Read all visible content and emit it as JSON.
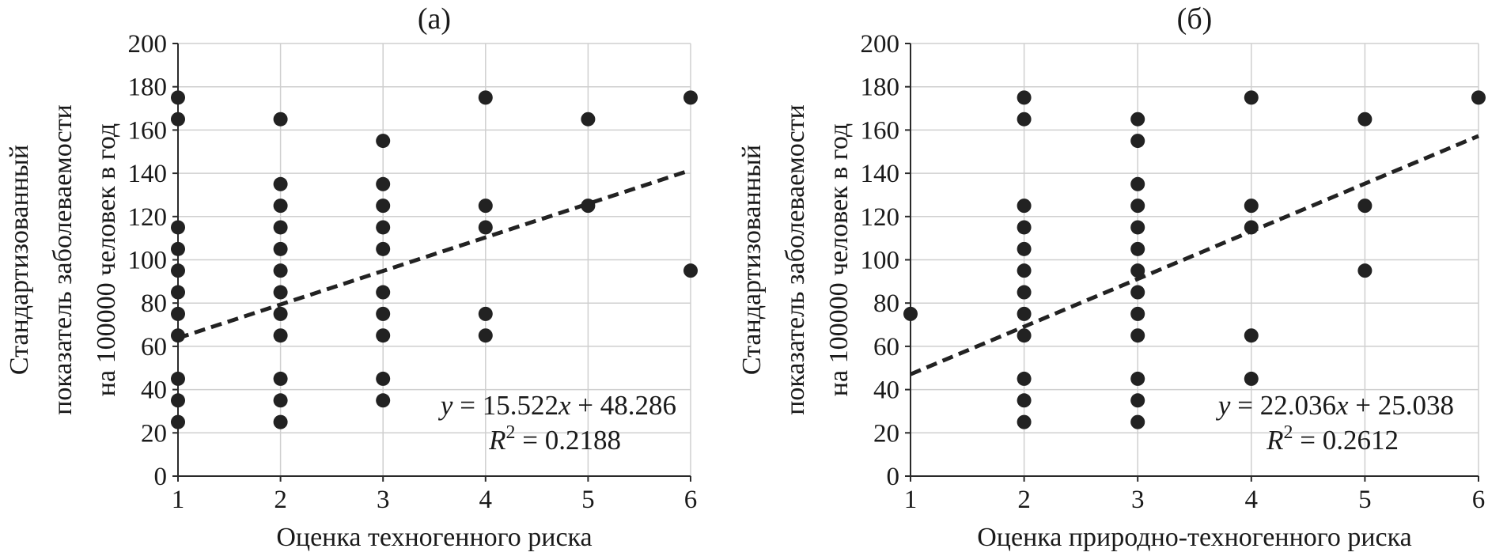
{
  "chart_data": [
    {
      "type": "scatter",
      "title": "(а)",
      "xlabel": "Оценка техногенного риска",
      "ylabel": [
        "Стандартизованный",
        "показатель заболеваемости",
        "на 100000 человек в год"
      ],
      "xlim": [
        1,
        6
      ],
      "ylim": [
        0,
        200
      ],
      "x_ticks": [
        "1",
        "2",
        "3",
        "4",
        "5",
        "6"
      ],
      "y_ticks": [
        "0",
        "20",
        "40",
        "60",
        "80",
        "100",
        "120",
        "140",
        "160",
        "180",
        "200"
      ],
      "grid": true,
      "points": [
        [
          1,
          175
        ],
        [
          1,
          165
        ],
        [
          1,
          115
        ],
        [
          1,
          105
        ],
        [
          1,
          95
        ],
        [
          1,
          85
        ],
        [
          1,
          75
        ],
        [
          1,
          65
        ],
        [
          1,
          45
        ],
        [
          1,
          35
        ],
        [
          1,
          25
        ],
        [
          2,
          165
        ],
        [
          2,
          135
        ],
        [
          2,
          125
        ],
        [
          2,
          115
        ],
        [
          2,
          105
        ],
        [
          2,
          95
        ],
        [
          2,
          85
        ],
        [
          2,
          75
        ],
        [
          2,
          65
        ],
        [
          2,
          45
        ],
        [
          2,
          35
        ],
        [
          2,
          25
        ],
        [
          3,
          155
        ],
        [
          3,
          135
        ],
        [
          3,
          125
        ],
        [
          3,
          115
        ],
        [
          3,
          105
        ],
        [
          3,
          85
        ],
        [
          3,
          75
        ],
        [
          3,
          65
        ],
        [
          3,
          45
        ],
        [
          3,
          35
        ],
        [
          4,
          175
        ],
        [
          4,
          125
        ],
        [
          4,
          115
        ],
        [
          4,
          75
        ],
        [
          4,
          65
        ],
        [
          5,
          165
        ],
        [
          5,
          125
        ],
        [
          6,
          175
        ],
        [
          6,
          95
        ]
      ],
      "trendline": {
        "slope": 15.522,
        "intercept": 48.286
      },
      "equation": {
        "y": "y",
        "eq": " = 15.522",
        "x": "x",
        "rest": " + 48.286"
      },
      "r2": {
        "r": "R",
        "sup": "2",
        "value": " = 0.2188"
      }
    },
    {
      "type": "scatter",
      "title": "(б)",
      "xlabel": "Оценка природно-техногенного риска",
      "ylabel": [
        "Стандартизованный",
        "показатель заболеваемости",
        "на 100000 человек в год"
      ],
      "xlim": [
        1,
        6
      ],
      "ylim": [
        0,
        200
      ],
      "x_ticks": [
        "1",
        "2",
        "3",
        "4",
        "5",
        "6"
      ],
      "y_ticks": [
        "0",
        "20",
        "40",
        "60",
        "80",
        "100",
        "120",
        "140",
        "160",
        "180",
        "200"
      ],
      "grid": true,
      "points": [
        [
          1,
          75
        ],
        [
          2,
          175
        ],
        [
          2,
          165
        ],
        [
          2,
          125
        ],
        [
          2,
          115
        ],
        [
          2,
          105
        ],
        [
          2,
          95
        ],
        [
          2,
          85
        ],
        [
          2,
          75
        ],
        [
          2,
          65
        ],
        [
          2,
          45
        ],
        [
          2,
          35
        ],
        [
          2,
          25
        ],
        [
          3,
          165
        ],
        [
          3,
          155
        ],
        [
          3,
          135
        ],
        [
          3,
          125
        ],
        [
          3,
          115
        ],
        [
          3,
          105
        ],
        [
          3,
          95
        ],
        [
          3,
          85
        ],
        [
          3,
          75
        ],
        [
          3,
          65
        ],
        [
          3,
          45
        ],
        [
          3,
          35
        ],
        [
          3,
          25
        ],
        [
          4,
          175
        ],
        [
          4,
          125
        ],
        [
          4,
          115
        ],
        [
          4,
          65
        ],
        [
          4,
          45
        ],
        [
          5,
          165
        ],
        [
          5,
          125
        ],
        [
          5,
          95
        ],
        [
          6,
          175
        ]
      ],
      "trendline": {
        "slope": 22.036,
        "intercept": 25.038
      },
      "equation": {
        "y": "y",
        "eq": " = 22.036",
        "x": "x",
        "rest": " + 25.038"
      },
      "r2": {
        "r": "R",
        "sup": "2",
        "value": " = 0.2612"
      }
    }
  ]
}
